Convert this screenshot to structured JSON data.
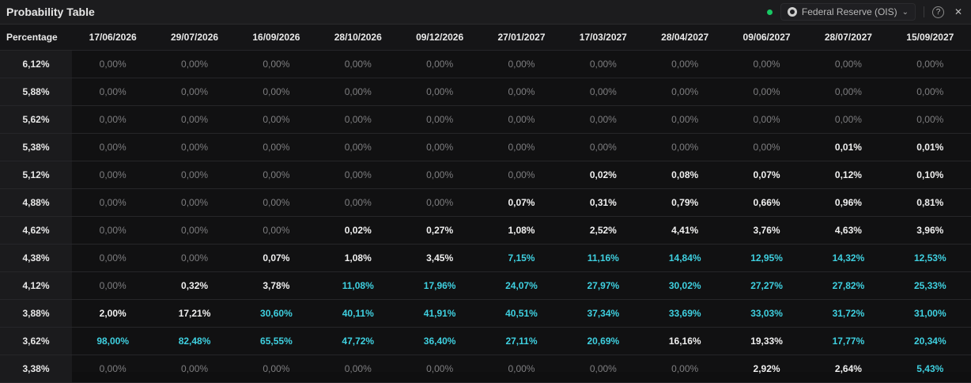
{
  "title": "Probability Table",
  "source_label": "Federal Reserve (OIS)",
  "icons": {
    "status": "live-dot",
    "source": "seal-icon",
    "dropdown": "chevron-down-icon",
    "help": "help-icon",
    "close": "close-icon"
  },
  "colors": {
    "zero": "#7e7e80",
    "normal": "#f0f0f0",
    "highlight": "#3fd0e0",
    "live": "#18c964"
  },
  "table": {
    "first_header": "Percentage",
    "columns": [
      "17/06/2026",
      "29/07/2026",
      "16/09/2026",
      "28/10/2026",
      "09/12/2026",
      "27/01/2027",
      "17/03/2027",
      "28/04/2027",
      "09/06/2027",
      "28/07/2027",
      "15/09/2027"
    ],
    "rows": [
      {
        "rate": "6,12%",
        "values": [
          "0,00%",
          "0,00%",
          "0,00%",
          "0,00%",
          "0,00%",
          "0,00%",
          "0,00%",
          "0,00%",
          "0,00%",
          "0,00%",
          "0,00%"
        ]
      },
      {
        "rate": "5,88%",
        "values": [
          "0,00%",
          "0,00%",
          "0,00%",
          "0,00%",
          "0,00%",
          "0,00%",
          "0,00%",
          "0,00%",
          "0,00%",
          "0,00%",
          "0,00%"
        ]
      },
      {
        "rate": "5,62%",
        "values": [
          "0,00%",
          "0,00%",
          "0,00%",
          "0,00%",
          "0,00%",
          "0,00%",
          "0,00%",
          "0,00%",
          "0,00%",
          "0,00%",
          "0,00%"
        ]
      },
      {
        "rate": "5,38%",
        "values": [
          "0,00%",
          "0,00%",
          "0,00%",
          "0,00%",
          "0,00%",
          "0,00%",
          "0,00%",
          "0,00%",
          "0,00%",
          "0,01%",
          "0,01%"
        ]
      },
      {
        "rate": "5,12%",
        "values": [
          "0,00%",
          "0,00%",
          "0,00%",
          "0,00%",
          "0,00%",
          "0,00%",
          "0,02%",
          "0,08%",
          "0,07%",
          "0,12%",
          "0,10%"
        ]
      },
      {
        "rate": "4,88%",
        "values": [
          "0,00%",
          "0,00%",
          "0,00%",
          "0,00%",
          "0,00%",
          "0,07%",
          "0,31%",
          "0,79%",
          "0,66%",
          "0,96%",
          "0,81%"
        ]
      },
      {
        "rate": "4,62%",
        "values": [
          "0,00%",
          "0,00%",
          "0,00%",
          "0,02%",
          "0,27%",
          "1,08%",
          "2,52%",
          "4,41%",
          "3,76%",
          "4,63%",
          "3,96%"
        ]
      },
      {
        "rate": "4,38%",
        "values": [
          "0,00%",
          "0,00%",
          "0,07%",
          "1,08%",
          "3,45%",
          "7,15%",
          "11,16%",
          "14,84%",
          "12,95%",
          "14,32%",
          "12,53%"
        ]
      },
      {
        "rate": "4,12%",
        "values": [
          "0,00%",
          "0,32%",
          "3,78%",
          "11,08%",
          "17,96%",
          "24,07%",
          "27,97%",
          "30,02%",
          "27,27%",
          "27,82%",
          "25,33%"
        ]
      },
      {
        "rate": "3,88%",
        "values": [
          "2,00%",
          "17,21%",
          "30,60%",
          "40,11%",
          "41,91%",
          "40,51%",
          "37,34%",
          "33,69%",
          "33,03%",
          "31,72%",
          "31,00%"
        ]
      },
      {
        "rate": "3,62%",
        "values": [
          "98,00%",
          "82,48%",
          "65,55%",
          "47,72%",
          "36,40%",
          "27,11%",
          "20,69%",
          "16,16%",
          "19,33%",
          "17,77%",
          "20,34%"
        ]
      },
      {
        "rate": "3,38%",
        "values": [
          "0,00%",
          "0,00%",
          "0,00%",
          "0,00%",
          "0,00%",
          "0,00%",
          "0,00%",
          "0,00%",
          "2,92%",
          "2,64%",
          "5,43%"
        ]
      }
    ],
    "highlight": [
      [],
      [],
      [],
      [],
      [],
      [],
      [],
      [
        5,
        6,
        7,
        8,
        9,
        10
      ],
      [
        3,
        4,
        5,
        6,
        7,
        8,
        9,
        10
      ],
      [
        2,
        3,
        4,
        5,
        6,
        7,
        8,
        9,
        10
      ],
      [
        0,
        1,
        2,
        3,
        4,
        5,
        6,
        9,
        10
      ],
      [
        10
      ]
    ]
  }
}
